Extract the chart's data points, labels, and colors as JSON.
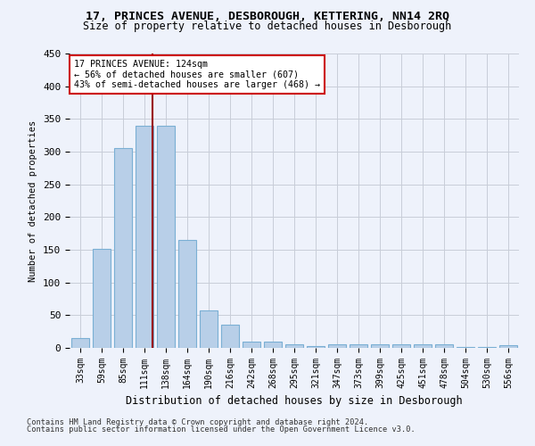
{
  "title1": "17, PRINCES AVENUE, DESBOROUGH, KETTERING, NN14 2RQ",
  "title2": "Size of property relative to detached houses in Desborough",
  "xlabel": "Distribution of detached houses by size in Desborough",
  "ylabel": "Number of detached properties",
  "footnote1": "Contains HM Land Registry data © Crown copyright and database right 2024.",
  "footnote2": "Contains public sector information licensed under the Open Government Licence v3.0.",
  "bar_labels": [
    "33sqm",
    "59sqm",
    "85sqm",
    "111sqm",
    "138sqm",
    "164sqm",
    "190sqm",
    "216sqm",
    "242sqm",
    "268sqm",
    "295sqm",
    "321sqm",
    "347sqm",
    "373sqm",
    "399sqm",
    "425sqm",
    "451sqm",
    "478sqm",
    "504sqm",
    "530sqm",
    "556sqm"
  ],
  "bar_values": [
    15,
    152,
    305,
    340,
    340,
    165,
    57,
    35,
    10,
    9,
    6,
    3,
    5,
    5,
    5,
    5,
    5,
    5,
    1,
    1,
    4
  ],
  "bar_color": "#b8cfe8",
  "bar_edge_color": "#7aafd4",
  "background_color": "#eef2fb",
  "grid_color": "#c8cdd8",
  "vline_x": 3.36,
  "vline_color": "#990000",
  "annotation_text": "17 PRINCES AVENUE: 124sqm\n← 56% of detached houses are smaller (607)\n43% of semi-detached houses are larger (468) →",
  "annotation_box_color": "#ffffff",
  "annotation_box_edge": "#cc0000",
  "ylim": [
    0,
    450
  ],
  "yticks": [
    0,
    50,
    100,
    150,
    200,
    250,
    300,
    350,
    400,
    450
  ]
}
